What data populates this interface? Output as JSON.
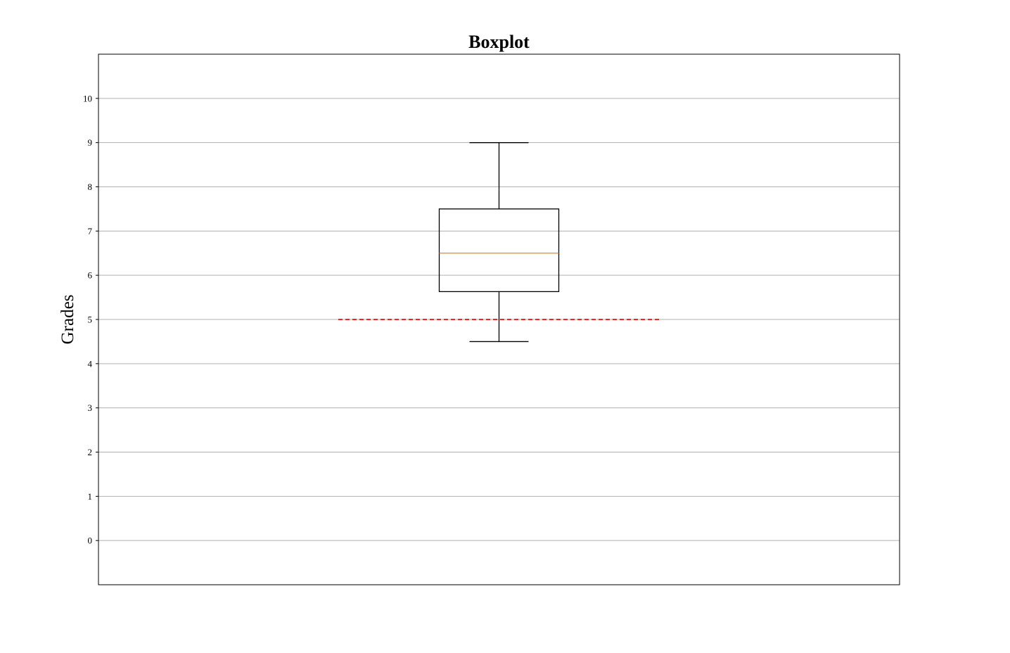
{
  "chart_data": {
    "type": "boxplot",
    "title": "Boxplot",
    "xlabel": "",
    "ylabel": "Grades",
    "ylim": [
      -1,
      11
    ],
    "yticks": [
      "0",
      "1",
      "2",
      "3",
      "4",
      "5",
      "6",
      "7",
      "8",
      "9",
      "10"
    ],
    "grid": "horizontal",
    "boxes": [
      {
        "whisker_low": 4.5,
        "q1": 5.63,
        "median": 6.5,
        "q3": 7.5,
        "whisker_high": 9
      }
    ],
    "reference_line": {
      "y": 5,
      "style": "dashed"
    },
    "colors": {
      "box": "#000000",
      "median": "#ff7f0e",
      "reference": "#ff0000",
      "grid": "#b0b0b0"
    }
  }
}
